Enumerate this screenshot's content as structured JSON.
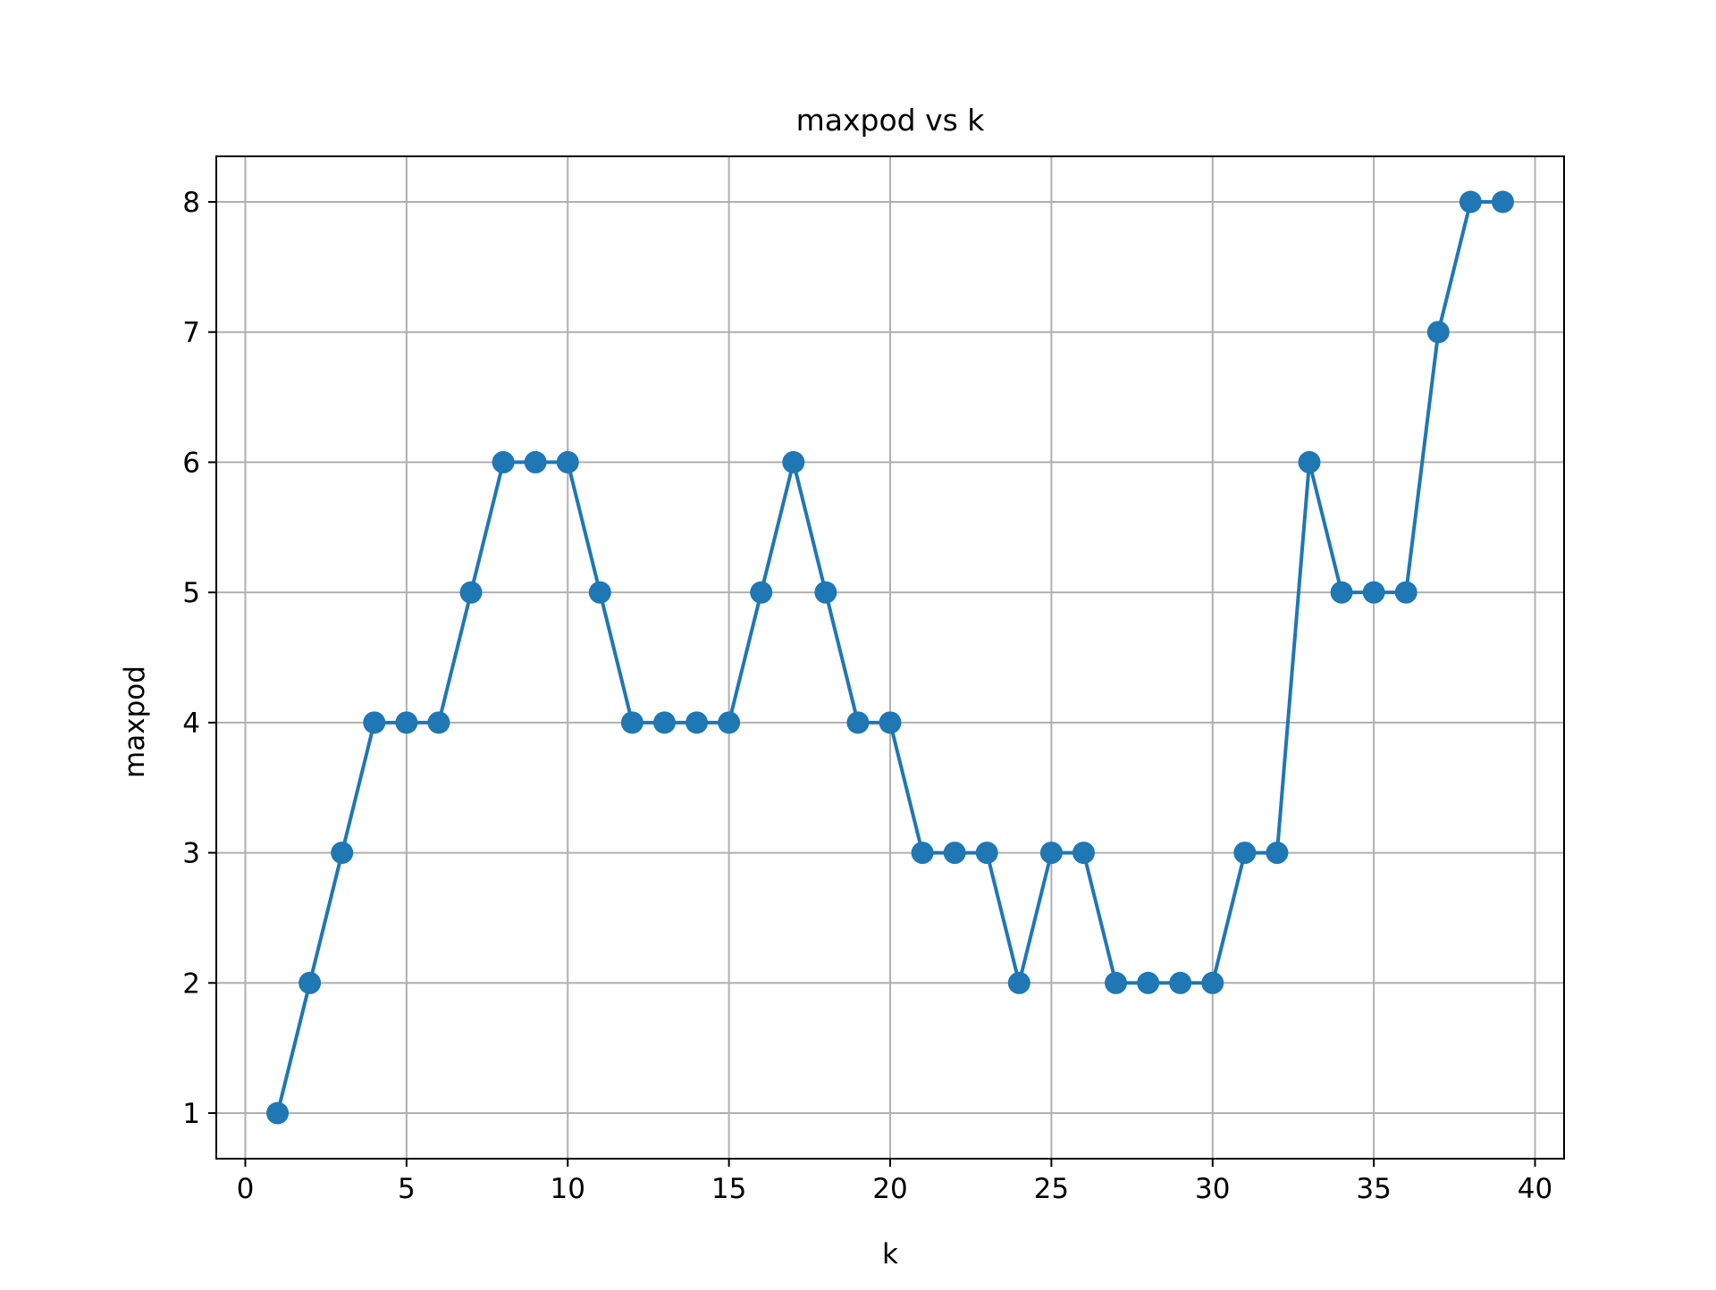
{
  "chart_data": {
    "type": "line",
    "title": "maxpod vs k",
    "xlabel": "k",
    "ylabel": "maxpod",
    "xlim": [
      -0.9,
      40.9
    ],
    "ylim": [
      0.65,
      8.35
    ],
    "xticks": [
      0,
      5,
      10,
      15,
      20,
      25,
      30,
      35,
      40
    ],
    "yticks": [
      1,
      2,
      3,
      4,
      5,
      6,
      7,
      8
    ],
    "grid": true,
    "marker": "circle",
    "series": [
      {
        "color": "#1f77b4",
        "x": [
          1,
          2,
          3,
          4,
          5,
          6,
          7,
          8,
          9,
          10,
          11,
          12,
          13,
          14,
          15,
          16,
          17,
          18,
          19,
          20,
          21,
          22,
          23,
          24,
          25,
          26,
          27,
          28,
          29,
          30,
          31,
          32,
          33,
          34,
          35,
          36,
          37,
          38,
          39
        ],
        "y": [
          1,
          2,
          3,
          4,
          4,
          4,
          5,
          6,
          6,
          6,
          5,
          4,
          4,
          4,
          4,
          5,
          6,
          5,
          4,
          4,
          3,
          3,
          3,
          2,
          3,
          3,
          2,
          2,
          2,
          2,
          3,
          3,
          6,
          5,
          5,
          5,
          7,
          8,
          8
        ]
      }
    ]
  }
}
